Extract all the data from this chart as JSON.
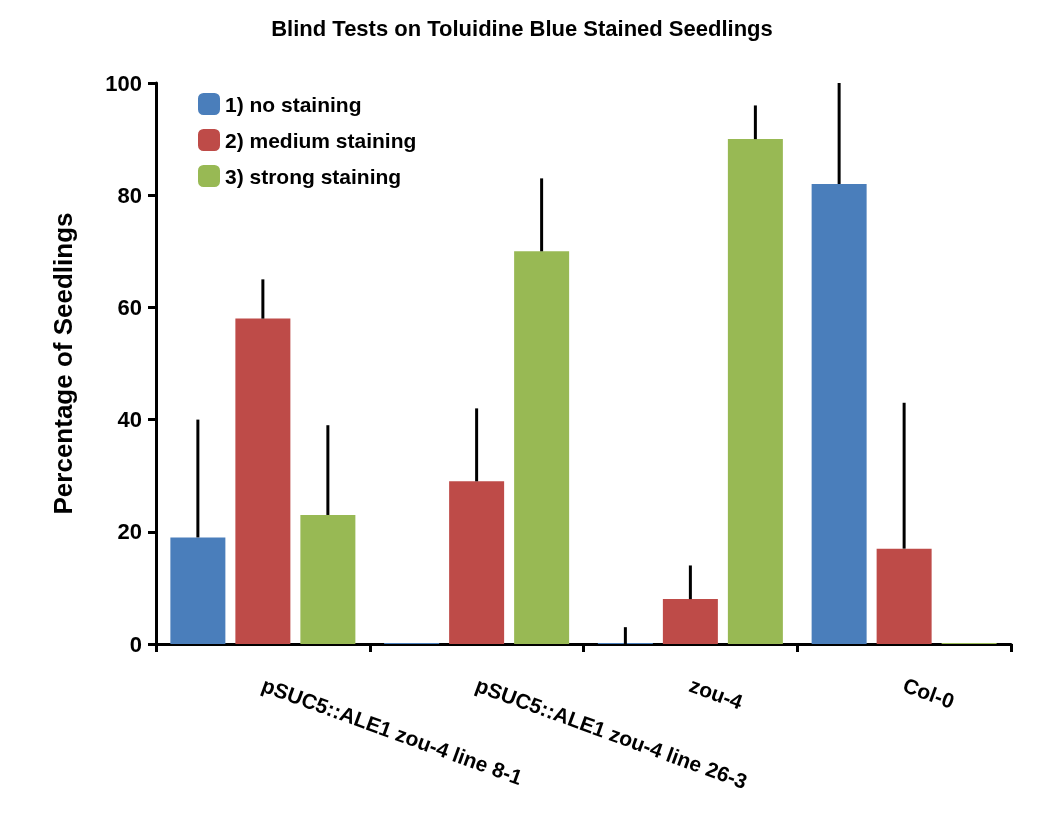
{
  "chart_data": {
    "type": "bar",
    "title": "Blind Tests on Toluidine Blue Stained Seedlings",
    "ylabel": "Percentage of Seedlings",
    "categories": [
      "pSUC5::ALE1 zou-4 line 8-1",
      "pSUC5::ALE1 zou-4 line 26-3",
      "zou-4",
      "Col-0"
    ],
    "series": [
      {
        "name": "1) no staining",
        "color": "#4a7ebb",
        "values": [
          19,
          0,
          0,
          82
        ],
        "errors": [
          [
            19,
            40
          ],
          null,
          [
            0,
            3
          ],
          [
            82,
            100
          ]
        ]
      },
      {
        "name": "2) medium staining",
        "color": "#be4b48",
        "values": [
          58,
          29,
          8,
          17
        ],
        "errors": [
          [
            58,
            65
          ],
          [
            29,
            42
          ],
          [
            8,
            14
          ],
          [
            17,
            43
          ]
        ]
      },
      {
        "name": "3) strong staining",
        "color": "#98b954",
        "values": [
          23,
          70,
          90,
          0
        ],
        "errors": [
          [
            23,
            39
          ],
          [
            70,
            83
          ],
          [
            90,
            96
          ],
          null
        ]
      }
    ],
    "ylim": [
      0,
      100
    ],
    "yticks": [
      0,
      20,
      40,
      60,
      80,
      100
    ],
    "grid": false,
    "legend": "top left"
  }
}
